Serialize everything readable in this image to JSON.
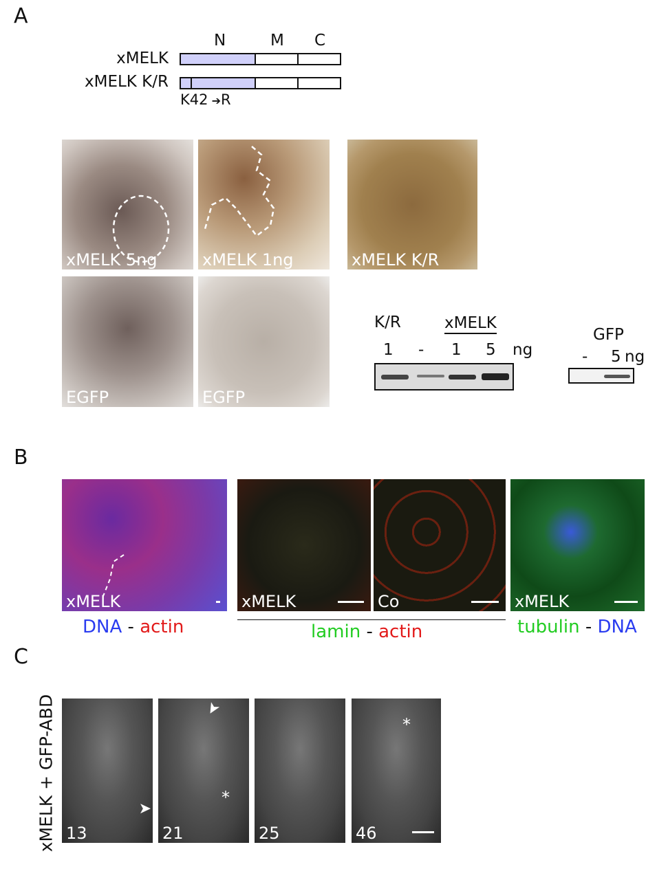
{
  "panel_a": {
    "label": "A",
    "domains": {
      "n": "N",
      "m": "M",
      "c": "C"
    },
    "constructs": [
      "xMELK",
      "xMELK K/R"
    ],
    "mutation": "K42",
    "mutation_target": "R",
    "domain_color": "#d0d0fa",
    "embryos": [
      {
        "label": "xMELK 5ng"
      },
      {
        "label": "xMELK 1ng"
      },
      {
        "label": "xMELK K/R"
      },
      {
        "label": "EGFP"
      },
      {
        "label": "EGFP"
      }
    ],
    "blot1": {
      "header_left": "K/R",
      "header_group": "xMELK",
      "lanes": [
        "1",
        "-",
        "1",
        "5"
      ],
      "unit": "ng"
    },
    "blot2": {
      "header": "GFP",
      "lanes": [
        "-",
        "5"
      ],
      "unit": "ng"
    }
  },
  "panel_b": {
    "label": "B",
    "images": [
      {
        "label": "xMELK"
      },
      {
        "label": "xMELK"
      },
      {
        "label": "Co"
      },
      {
        "label": "xMELK"
      }
    ],
    "captions": {
      "dna_actin": {
        "a": "DNA",
        "sep": "-",
        "b": "actin"
      },
      "lamin_actin": {
        "a": "lamin",
        "sep": "-",
        "b": "actin"
      },
      "tubulin_dna": {
        "a": "tubulin",
        "sep": "-",
        "b": "DNA"
      }
    },
    "colors": {
      "dna": "#2a3cf0",
      "actin": "#e21a1a",
      "green": "#22cc22"
    }
  },
  "panel_c": {
    "label": "C",
    "side_label": "xMELK + GFP-ABD",
    "frames": [
      "13",
      "21",
      "25",
      "46"
    ],
    "markers": {
      "asterisk": "*"
    }
  }
}
